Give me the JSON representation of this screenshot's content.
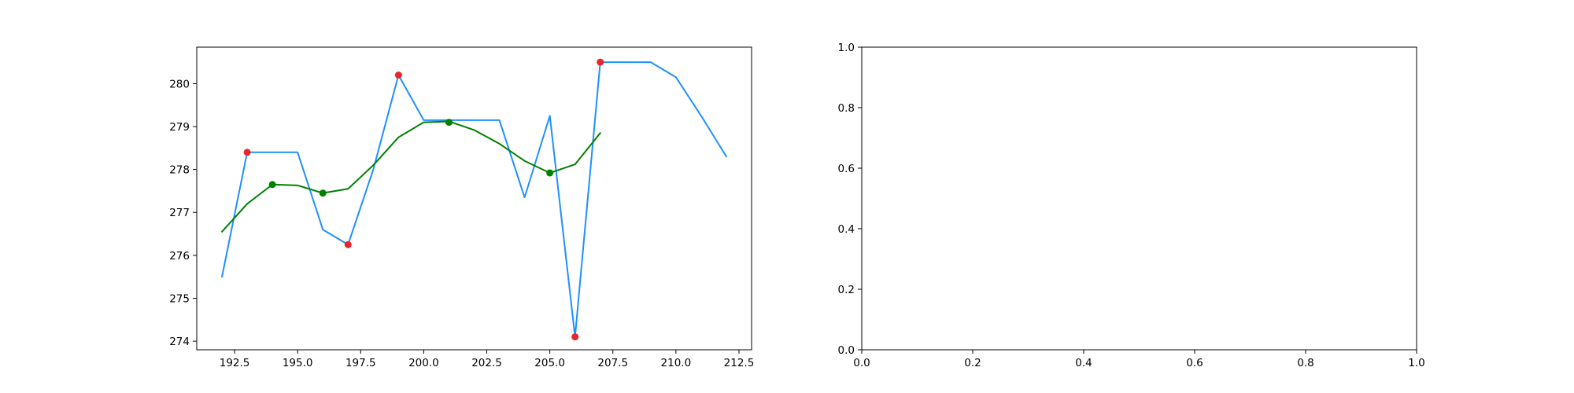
{
  "chart_data": [
    {
      "type": "line",
      "xlim": [
        191.0,
        213.0
      ],
      "ylim": [
        273.8,
        280.85
      ],
      "xticks": [
        192.5,
        195.0,
        197.5,
        200.0,
        202.5,
        205.0,
        207.5,
        210.0,
        212.5
      ],
      "xtick_labels": [
        "192.5",
        "195.0",
        "197.5",
        "200.0",
        "202.5",
        "205.0",
        "207.5",
        "210.0",
        "212.5"
      ],
      "yticks": [
        274,
        275,
        276,
        277,
        278,
        279,
        280
      ],
      "ytick_labels": [
        "274",
        "275",
        "276",
        "277",
        "278",
        "279",
        "280"
      ],
      "grid": false,
      "series": [
        {
          "kind": "line",
          "color": "#1e90ff",
          "x": [
            192,
            193,
            194,
            195,
            196,
            197,
            198,
            199,
            200,
            201,
            202,
            203,
            204,
            205,
            206,
            207,
            208,
            209,
            210,
            211,
            212
          ],
          "y": [
            275.5,
            278.4,
            278.4,
            278.4,
            276.6,
            276.25,
            278.0,
            280.2,
            279.15,
            279.15,
            279.15,
            279.15,
            277.35,
            279.25,
            274.1,
            280.5,
            280.5,
            280.5,
            280.15,
            279.25,
            278.3
          ]
        },
        {
          "kind": "line",
          "color": "#008000",
          "x": [
            192,
            193,
            194,
            195,
            196,
            197,
            198,
            199,
            200,
            201,
            202,
            203,
            204,
            205,
            206,
            207
          ],
          "y": [
            276.55,
            277.2,
            277.65,
            277.63,
            277.45,
            277.55,
            278.1,
            278.75,
            279.1,
            279.12,
            278.92,
            278.6,
            278.2,
            277.92,
            278.12,
            278.85
          ]
        },
        {
          "kind": "scatter",
          "color": "#e8262c",
          "x": [
            193,
            197,
            199,
            206,
            207
          ],
          "y": [
            278.4,
            276.25,
            280.2,
            274.1,
            280.5
          ]
        },
        {
          "kind": "scatter",
          "color": "#008000",
          "x": [
            194,
            196,
            201,
            205
          ],
          "y": [
            277.65,
            277.45,
            279.1,
            277.92
          ]
        }
      ]
    },
    {
      "type": "line",
      "xlim": [
        0.0,
        1.0
      ],
      "ylim": [
        0.0,
        1.0
      ],
      "xticks": [
        0.0,
        0.2,
        0.4,
        0.6,
        0.8,
        1.0
      ],
      "xtick_labels": [
        "0.0",
        "0.2",
        "0.4",
        "0.6",
        "0.8",
        "1.0"
      ],
      "yticks": [
        0.0,
        0.2,
        0.4,
        0.6,
        0.8,
        1.0
      ],
      "ytick_labels": [
        "0.0",
        "0.2",
        "0.4",
        "0.6",
        "0.8",
        "1.0"
      ],
      "grid": false,
      "series": []
    }
  ]
}
